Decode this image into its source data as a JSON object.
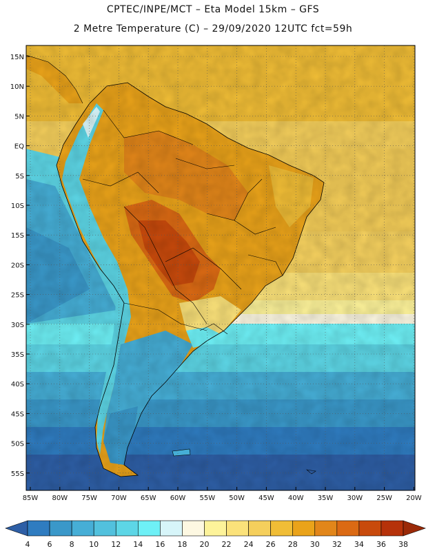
{
  "header": {
    "title_line1": "CPTEC/INPE/MCT –  Eta Model 15km – GFS",
    "title_line2": "2 Metre Temperature (C) – 29/09/2020 12UTC fct=59h"
  },
  "axes": {
    "lat_labels": [
      "15N",
      "10N",
      "5N",
      "EQ",
      "5S",
      "10S",
      "15S",
      "20S",
      "25S",
      "30S",
      "35S",
      "40S",
      "45S",
      "50S",
      "55S"
    ],
    "lon_labels": [
      "85W",
      "80W",
      "75W",
      "70W",
      "65W",
      "60W",
      "55W",
      "50W",
      "45W",
      "40W",
      "35W",
      "30W",
      "25W",
      "20W"
    ]
  },
  "colorbar": {
    "labels": [
      "4",
      "6",
      "8",
      "10",
      "12",
      "14",
      "16",
      "18",
      "20",
      "22",
      "24",
      "26",
      "28",
      "30",
      "32",
      "34",
      "36",
      "38"
    ],
    "colors": [
      "#2e5fa6",
      "#2f7cc0",
      "#3a98c9",
      "#46aed6",
      "#52c1dd",
      "#5dd6e6",
      "#6ef0f6",
      "#d7f5f9",
      "#fdf8e2",
      "#fdf39a",
      "#fbe27a",
      "#f5cf5c",
      "#f0bd36",
      "#eaa31a",
      "#e2861a",
      "#db6a14",
      "#c84a0c",
      "#b6320a",
      "#9b2a08"
    ]
  },
  "map_features": {
    "south_america_outline": "continent-coastline",
    "country_borders": "political-boundaries",
    "gridlines": "dotted"
  }
}
